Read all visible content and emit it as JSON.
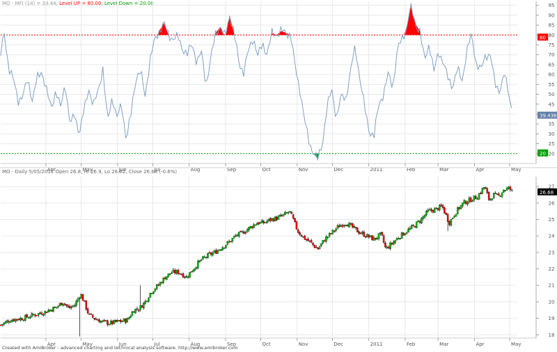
{
  "colors": {
    "mfi_line": "#7f9fc4",
    "level_up": "#ff0000",
    "level_down": "#00a000",
    "candle_up": "#00c000",
    "candle_down": "#ff0000",
    "wick": "#000000",
    "grid": "#e8e8e8",
    "label_fill": "#5f7fa8"
  },
  "footer": "Created with AmiBroker - advanced charting and technical analysis software. http://www.amibroker.com",
  "chart_data": [
    {
      "type": "line",
      "header": {
        "name": "MO - MFI (14) = 39.44",
        "up_label": "Level UP = 80.00",
        "down_label": "Level Down = 20.00"
      },
      "ylim": [
        15,
        97
      ],
      "y_ticks": [
        20,
        25,
        30,
        35,
        40,
        45,
        50,
        55,
        60,
        65,
        70,
        75,
        80,
        85,
        90,
        95
      ],
      "level_up": 80,
      "level_down": 20,
      "level_up_badge": "80",
      "level_down_badge": "20",
      "last_value_badge": "39.4364",
      "x_labels": [
        "Apr",
        "May",
        "Jun",
        "Jul",
        "Aug",
        "Sep",
        "Oct",
        "Nov",
        "Dec",
        "2011",
        "Feb",
        "Mar",
        "Apr",
        "May"
      ],
      "x_label_days": [
        0.5,
        30.5,
        61.5,
        91.5,
        122.5,
        153.5,
        183.5,
        214.5,
        244.5,
        275.5,
        306.5,
        334.5,
        365.5,
        395.5
      ],
      "x_range": [
        -38,
        402
      ],
      "series": [
        {
          "points": [
            [
              -38,
              70
            ],
            [
              -35,
              81
            ],
            [
              -31,
              63
            ],
            [
              -27,
              57
            ],
            [
              -23,
              47
            ],
            [
              -19,
              49
            ],
            [
              -15,
              58
            ],
            [
              -11,
              47
            ],
            [
              -7,
              58
            ],
            [
              -3,
              62
            ],
            [
              1,
              52
            ],
            [
              5,
              43
            ],
            [
              9,
              52
            ],
            [
              13,
              43
            ],
            [
              17,
              56
            ],
            [
              21,
              34
            ],
            [
              25,
              40
            ],
            [
              29,
              30
            ],
            [
              33,
              42
            ],
            [
              37,
              53
            ],
            [
              41,
              44
            ],
            [
              45,
              52
            ],
            [
              49,
              63
            ],
            [
              53,
              36
            ],
            [
              57,
              49
            ],
            [
              61,
              38
            ],
            [
              65,
              45
            ],
            [
              69,
              27
            ],
            [
              73,
              40
            ],
            [
              77,
              58
            ],
            [
              81,
              62
            ],
            [
              85,
              49
            ],
            [
              89,
              67
            ],
            [
              93,
              77
            ],
            [
              97,
              82
            ],
            [
              101,
              86
            ],
            [
              105,
              80
            ],
            [
              109,
              78
            ],
            [
              113,
              79
            ],
            [
              117,
              73
            ],
            [
              121,
              70
            ],
            [
              125,
              76
            ],
            [
              129,
              66
            ],
            [
              133,
              71
            ],
            [
              137,
              55
            ],
            [
              141,
              68
            ],
            [
              145,
              81
            ],
            [
              149,
              84
            ],
            [
              153,
              79
            ],
            [
              157,
              90
            ],
            [
              161,
              80
            ],
            [
              165,
              66
            ],
            [
              169,
              61
            ],
            [
              173,
              72
            ],
            [
              177,
              79
            ],
            [
              181,
              69
            ],
            [
              185,
              76
            ],
            [
              189,
              70
            ],
            [
              193,
              81
            ],
            [
              197,
              80
            ],
            [
              201,
              82
            ],
            [
              205,
              81
            ],
            [
              209,
              80
            ],
            [
              213,
              63
            ],
            [
              217,
              52
            ],
            [
              221,
              36
            ],
            [
              225,
              25
            ],
            [
              229,
              20
            ],
            [
              232,
              17
            ],
            [
              236,
              25
            ],
            [
              240,
              44
            ],
            [
              244,
              52
            ],
            [
              248,
              38
            ],
            [
              252,
              49
            ],
            [
              256,
              48
            ],
            [
              260,
              62
            ],
            [
              264,
              74
            ],
            [
              268,
              58
            ],
            [
              272,
              43
            ],
            [
              276,
              31
            ],
            [
              280,
              29
            ],
            [
              284,
              45
            ],
            [
              288,
              50
            ],
            [
              292,
              60
            ],
            [
              296,
              54
            ],
            [
              300,
              73
            ],
            [
              304,
              78
            ],
            [
              308,
              84
            ],
            [
              311,
              95
            ],
            [
              315,
              86
            ],
            [
              319,
              82
            ],
            [
              323,
              67
            ],
            [
              327,
              76
            ],
            [
              331,
              61
            ],
            [
              335,
              72
            ],
            [
              339,
              66
            ],
            [
              343,
              58
            ],
            [
              347,
              54
            ],
            [
              351,
              63
            ],
            [
              355,
              57
            ],
            [
              359,
              72
            ],
            [
              363,
              80
            ],
            [
              367,
              66
            ],
            [
              371,
              62
            ],
            [
              375,
              70
            ],
            [
              379,
              70
            ],
            [
              383,
              55
            ],
            [
              387,
              52
            ],
            [
              391,
              60
            ],
            [
              395,
              50
            ],
            [
              398,
              40
            ]
          ]
        }
      ]
    },
    {
      "type": "candlestick",
      "header": "MO - Daily 5/05/2011 Open 26.8, Hi 26.9, Lo 26.62, Close 26.68 (-0.6%)",
      "ylim": [
        17.8,
        27.6
      ],
      "y_ticks": [
        18,
        19,
        20,
        21,
        22,
        23,
        24,
        25,
        26,
        27
      ],
      "last_close_badge": "26.68",
      "x_labels": [
        "Apr",
        "May",
        "Jun",
        "Jul",
        "Aug",
        "Sep",
        "Oct",
        "Nov",
        "Dec",
        "2011",
        "Feb",
        "Mar",
        "Apr",
        "May"
      ],
      "x_label_days": [
        0.5,
        30.5,
        61.5,
        91.5,
        122.5,
        153.5,
        183.5,
        214.5,
        244.5,
        275.5,
        306.5,
        334.5,
        365.5,
        395.5
      ],
      "x_range": [
        -38,
        402
      ],
      "close_path": [
        [
          -38,
          18.6
        ],
        [
          -30,
          18.9
        ],
        [
          -20,
          19.0
        ],
        [
          -10,
          19.2
        ],
        [
          0,
          19.4
        ],
        [
          10,
          19.7
        ],
        [
          15,
          20.0
        ],
        [
          20,
          19.6
        ],
        [
          25,
          19.8
        ],
        [
          30,
          20.5
        ],
        [
          33,
          20.0
        ],
        [
          37,
          19.2
        ],
        [
          42,
          19.0
        ],
        [
          48,
          18.8
        ],
        [
          55,
          18.7
        ],
        [
          62,
          18.8
        ],
        [
          70,
          18.9
        ],
        [
          75,
          19.5
        ],
        [
          80,
          19.6
        ],
        [
          85,
          20.0
        ],
        [
          90,
          20.6
        ],
        [
          96,
          21.0
        ],
        [
          102,
          21.5
        ],
        [
          108,
          21.8
        ],
        [
          114,
          21.8
        ],
        [
          120,
          21.5
        ],
        [
          126,
          22.0
        ],
        [
          132,
          22.5
        ],
        [
          138,
          22.8
        ],
        [
          144,
          23.0
        ],
        [
          150,
          23.3
        ],
        [
          156,
          23.6
        ],
        [
          162,
          24.0
        ],
        [
          168,
          24.2
        ],
        [
          174,
          24.5
        ],
        [
          180,
          24.8
        ],
        [
          186,
          24.8
        ],
        [
          192,
          25.0
        ],
        [
          198,
          25.1
        ],
        [
          204,
          25.3
        ],
        [
          208,
          25.5
        ],
        [
          211,
          25.0
        ],
        [
          215,
          24.3
        ],
        [
          220,
          23.9
        ],
        [
          226,
          23.6
        ],
        [
          232,
          23.2
        ],
        [
          238,
          23.8
        ],
        [
          244,
          24.2
        ],
        [
          250,
          24.6
        ],
        [
          256,
          24.8
        ],
        [
          262,
          24.5
        ],
        [
          268,
          24.2
        ],
        [
          274,
          24.0
        ],
        [
          280,
          23.8
        ],
        [
          286,
          24.1
        ],
        [
          290,
          23.2
        ],
        [
          296,
          23.6
        ],
        [
          302,
          24.0
        ],
        [
          308,
          24.3
        ],
        [
          314,
          24.6
        ],
        [
          320,
          25.0
        ],
        [
          326,
          25.5
        ],
        [
          332,
          25.6
        ],
        [
          338,
          25.8
        ],
        [
          344,
          24.8
        ],
        [
          350,
          25.5
        ],
        [
          356,
          26.0
        ],
        [
          362,
          26.2
        ],
        [
          368,
          26.4
        ],
        [
          374,
          27.0
        ],
        [
          378,
          26.2
        ],
        [
          382,
          26.5
        ],
        [
          386,
          26.4
        ],
        [
          390,
          26.8
        ],
        [
          395,
          26.9
        ],
        [
          398,
          26.68
        ]
      ],
      "anomalies": [
        {
          "day": 29,
          "low": 17.9
        },
        {
          "day": 81,
          "high": 21.0
        },
        {
          "day": 343,
          "low": 24.3
        }
      ]
    }
  ]
}
